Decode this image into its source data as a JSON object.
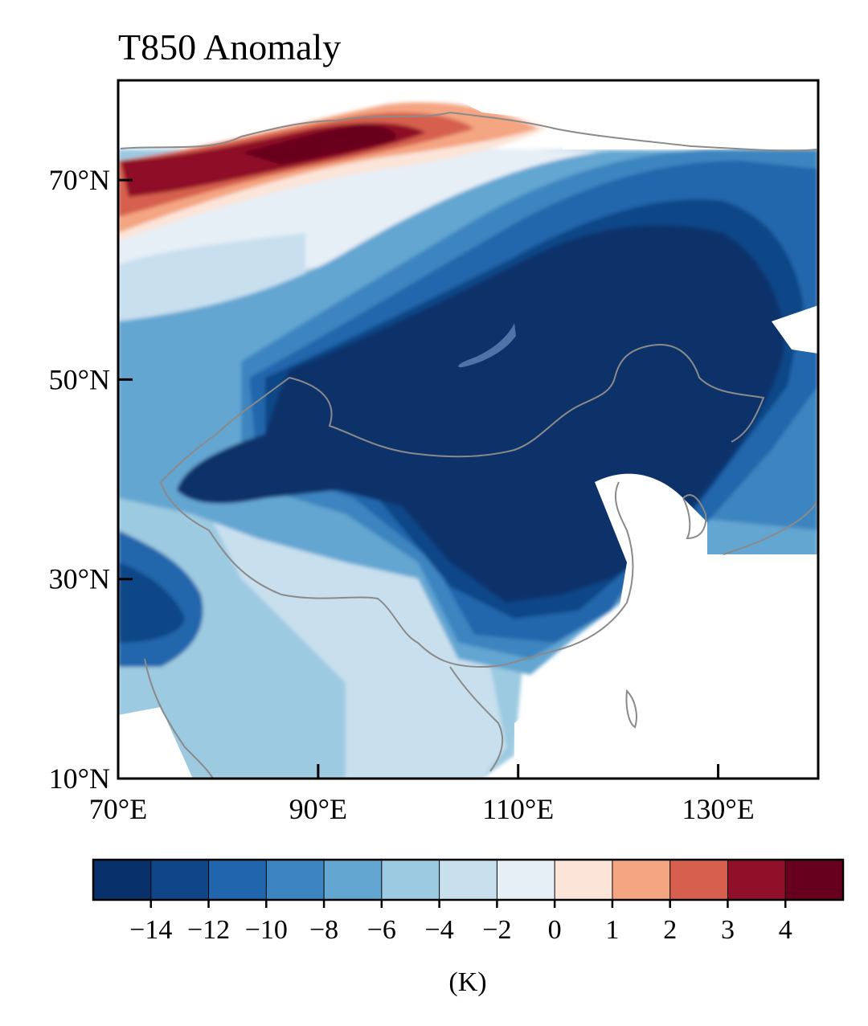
{
  "title": "T850 Anomaly",
  "colors": {
    "coast": "#8a8a8a",
    "lake": "#5b7fb0",
    "frame": "#000000",
    "palette": [
      "#08306b",
      "#0e4687",
      "#2166ac",
      "#3c85c0",
      "#64a6d2",
      "#9ccae1",
      "#c8dfee",
      "#e6eef6",
      "#fbe4d8",
      "#f4a582",
      "#d6604d",
      "#8f1028",
      "#67001f"
    ]
  },
  "map": {
    "lon_range": [
      70,
      140
    ],
    "lat_range": [
      10,
      80
    ],
    "lon_ticks": [
      "70°E",
      "90°E",
      "110°E",
      "130°E"
    ],
    "lat_ticks": [
      "10°N",
      "30°N",
      "50°N",
      "70°N"
    ],
    "field": "850 hPa air temperature anomaly",
    "units": "K"
  },
  "colorbar": {
    "tick_labels": [
      "−14",
      "−12",
      "−10",
      "−8",
      "−6",
      "−4",
      "−2",
      "0",
      "1",
      "2",
      "3",
      "4"
    ],
    "label": "(K)",
    "n_bins": 13
  }
}
